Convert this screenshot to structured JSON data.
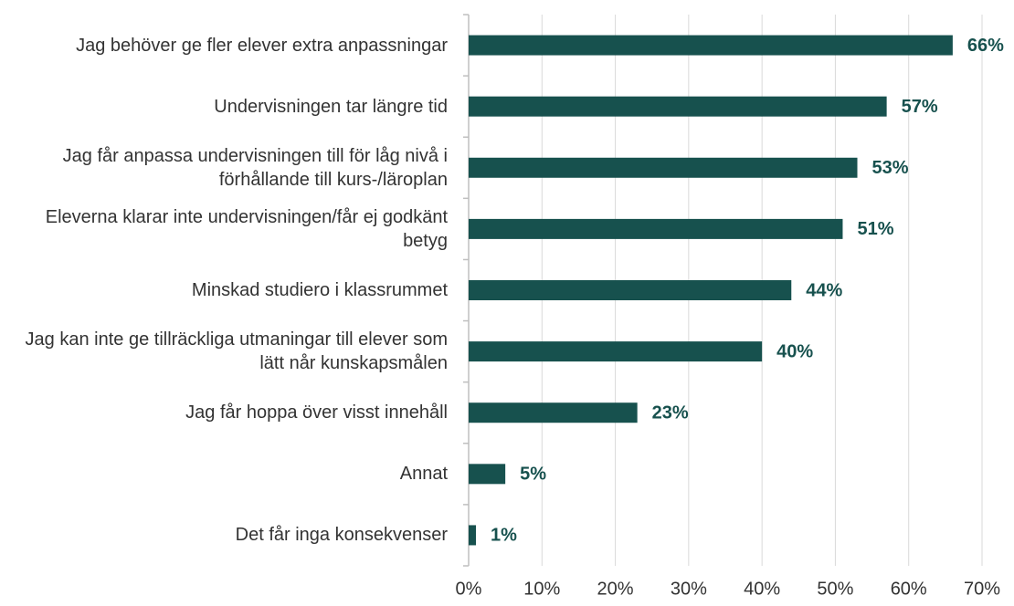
{
  "chart_data": {
    "type": "barh",
    "categories": [
      "Jag behöver ge fler elever extra anpassningar",
      "Undervisningen tar längre tid",
      "Jag får anpassa undervisningen till för låg nivå i förhållande till kurs-/läroplan",
      "Eleverna klarar inte undervisningen/får ej godkänt betyg",
      "Minskad studiero i klassrummet",
      "Jag kan inte ge tillräckliga utmaningar till elever som lätt når kunskapsmålen",
      "Jag får hoppa över visst innehåll",
      "Annat",
      "Det får inga konsekvenser"
    ],
    "values": [
      66,
      57,
      53,
      51,
      44,
      40,
      23,
      5,
      1
    ],
    "value_labels": [
      "66%",
      "57%",
      "53%",
      "51%",
      "44%",
      "40%",
      "23%",
      "5%",
      "1%"
    ],
    "color": "#17514e",
    "xlim": [
      0,
      70
    ],
    "xticks": [
      {
        "value": 0,
        "label": "0%"
      },
      {
        "value": 10,
        "label": "10%"
      },
      {
        "value": 20,
        "label": "20%"
      },
      {
        "value": 30,
        "label": "30%"
      },
      {
        "value": 40,
        "label": "40%"
      },
      {
        "value": 50,
        "label": "50%"
      },
      {
        "value": 60,
        "label": "60%"
      },
      {
        "value": 70,
        "label": "70%"
      }
    ],
    "grid": true
  }
}
